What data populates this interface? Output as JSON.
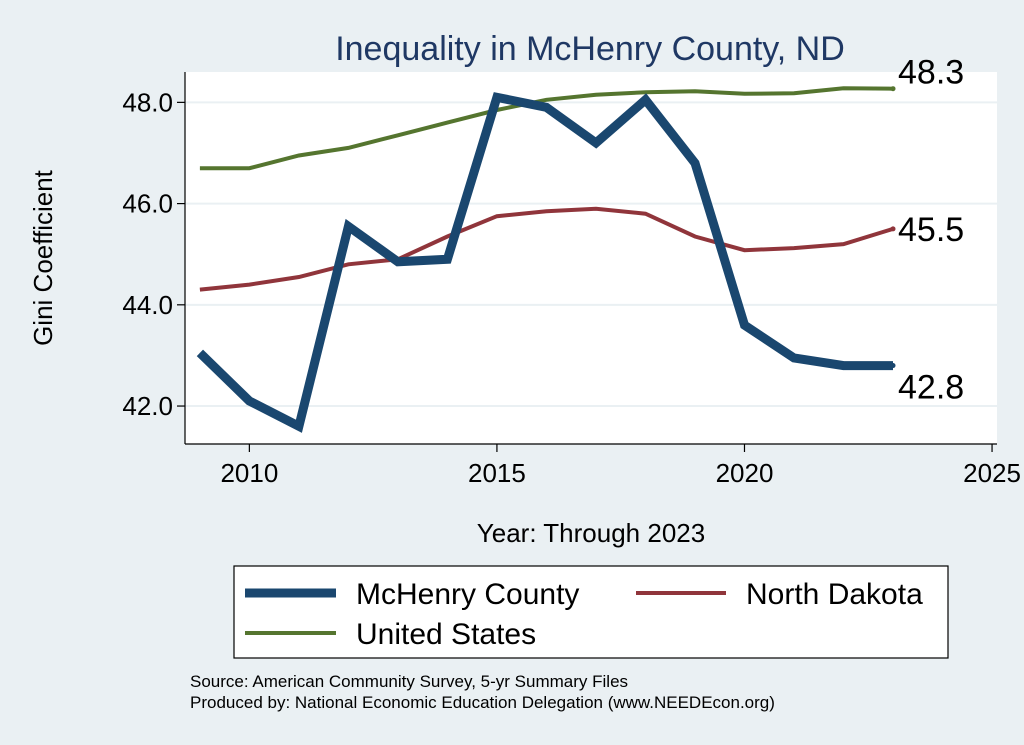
{
  "chart_data": {
    "type": "line",
    "title": "Inequality in McHenry County, ND",
    "xlabel": "Year: Through 2023",
    "ylabel": "Gini Coefficient",
    "xlim": [
      2008.7,
      2025.1
    ],
    "ylim": [
      41.25,
      48.6
    ],
    "x_ticks": [
      2010,
      2015,
      2020,
      2025
    ],
    "y_ticks": [
      42,
      44,
      46,
      48
    ],
    "y_tick_labels": [
      "42.0",
      "44.0",
      "46.0",
      "48.0"
    ],
    "x": [
      2009,
      2010,
      2011,
      2012,
      2013,
      2014,
      2015,
      2016,
      2017,
      2018,
      2019,
      2020,
      2021,
      2022,
      2023
    ],
    "series": [
      {
        "name": "McHenry County",
        "color": "#1a476f",
        "width": 9,
        "values": [
          43.05,
          42.1,
          41.6,
          45.55,
          44.85,
          44.9,
          48.1,
          47.9,
          47.2,
          48.05,
          46.8,
          43.6,
          42.95,
          42.8,
          42.8
        ],
        "end_label": "42.8"
      },
      {
        "name": "North Dakota",
        "color": "#90353b",
        "width": 4,
        "values": [
          44.3,
          44.4,
          44.55,
          44.8,
          44.9,
          45.35,
          45.75,
          45.85,
          45.9,
          45.8,
          45.35,
          45.08,
          45.12,
          45.2,
          45.5
        ],
        "end_label": "45.5"
      },
      {
        "name": "United States",
        "color": "#55752f",
        "width": 4,
        "values": [
          46.7,
          46.7,
          46.95,
          47.1,
          47.35,
          47.6,
          47.85,
          48.05,
          48.15,
          48.2,
          48.22,
          48.17,
          48.18,
          48.28,
          48.27
        ],
        "end_label": "48.3"
      }
    ],
    "legend": {
      "placement": "bottom",
      "items": [
        "McHenry County",
        "North Dakota",
        "United States"
      ]
    },
    "grid": true
  },
  "footer": {
    "source": "Source: American Community Survey, 5-yr Summary Files",
    "produced_by": "Produced by: National Economic Education Delegation (www.NEEDEcon.org)"
  }
}
